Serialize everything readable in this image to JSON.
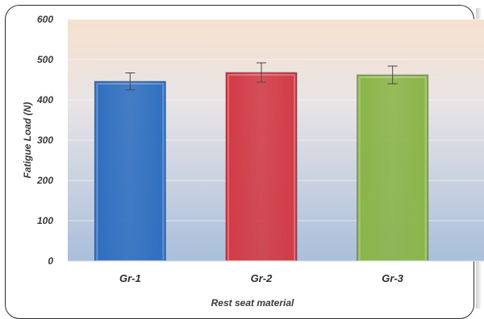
{
  "chart_data": {
    "type": "bar",
    "categories": [
      "Gr-1",
      "Gr-2",
      "Gr-3"
    ],
    "values": [
      446,
      468,
      462
    ],
    "error": [
      21,
      24,
      22
    ],
    "colors": [
      "#2f6fc0",
      "#d23a45",
      "#8ab548"
    ],
    "title": "",
    "xlabel": "Rest seat material",
    "ylabel": "Fatigue Load (N)",
    "ylim": [
      0,
      600
    ],
    "yticks": [
      "0",
      "100",
      "200",
      "300",
      "400",
      "500",
      "600"
    ],
    "grid": true,
    "legend": "none"
  }
}
